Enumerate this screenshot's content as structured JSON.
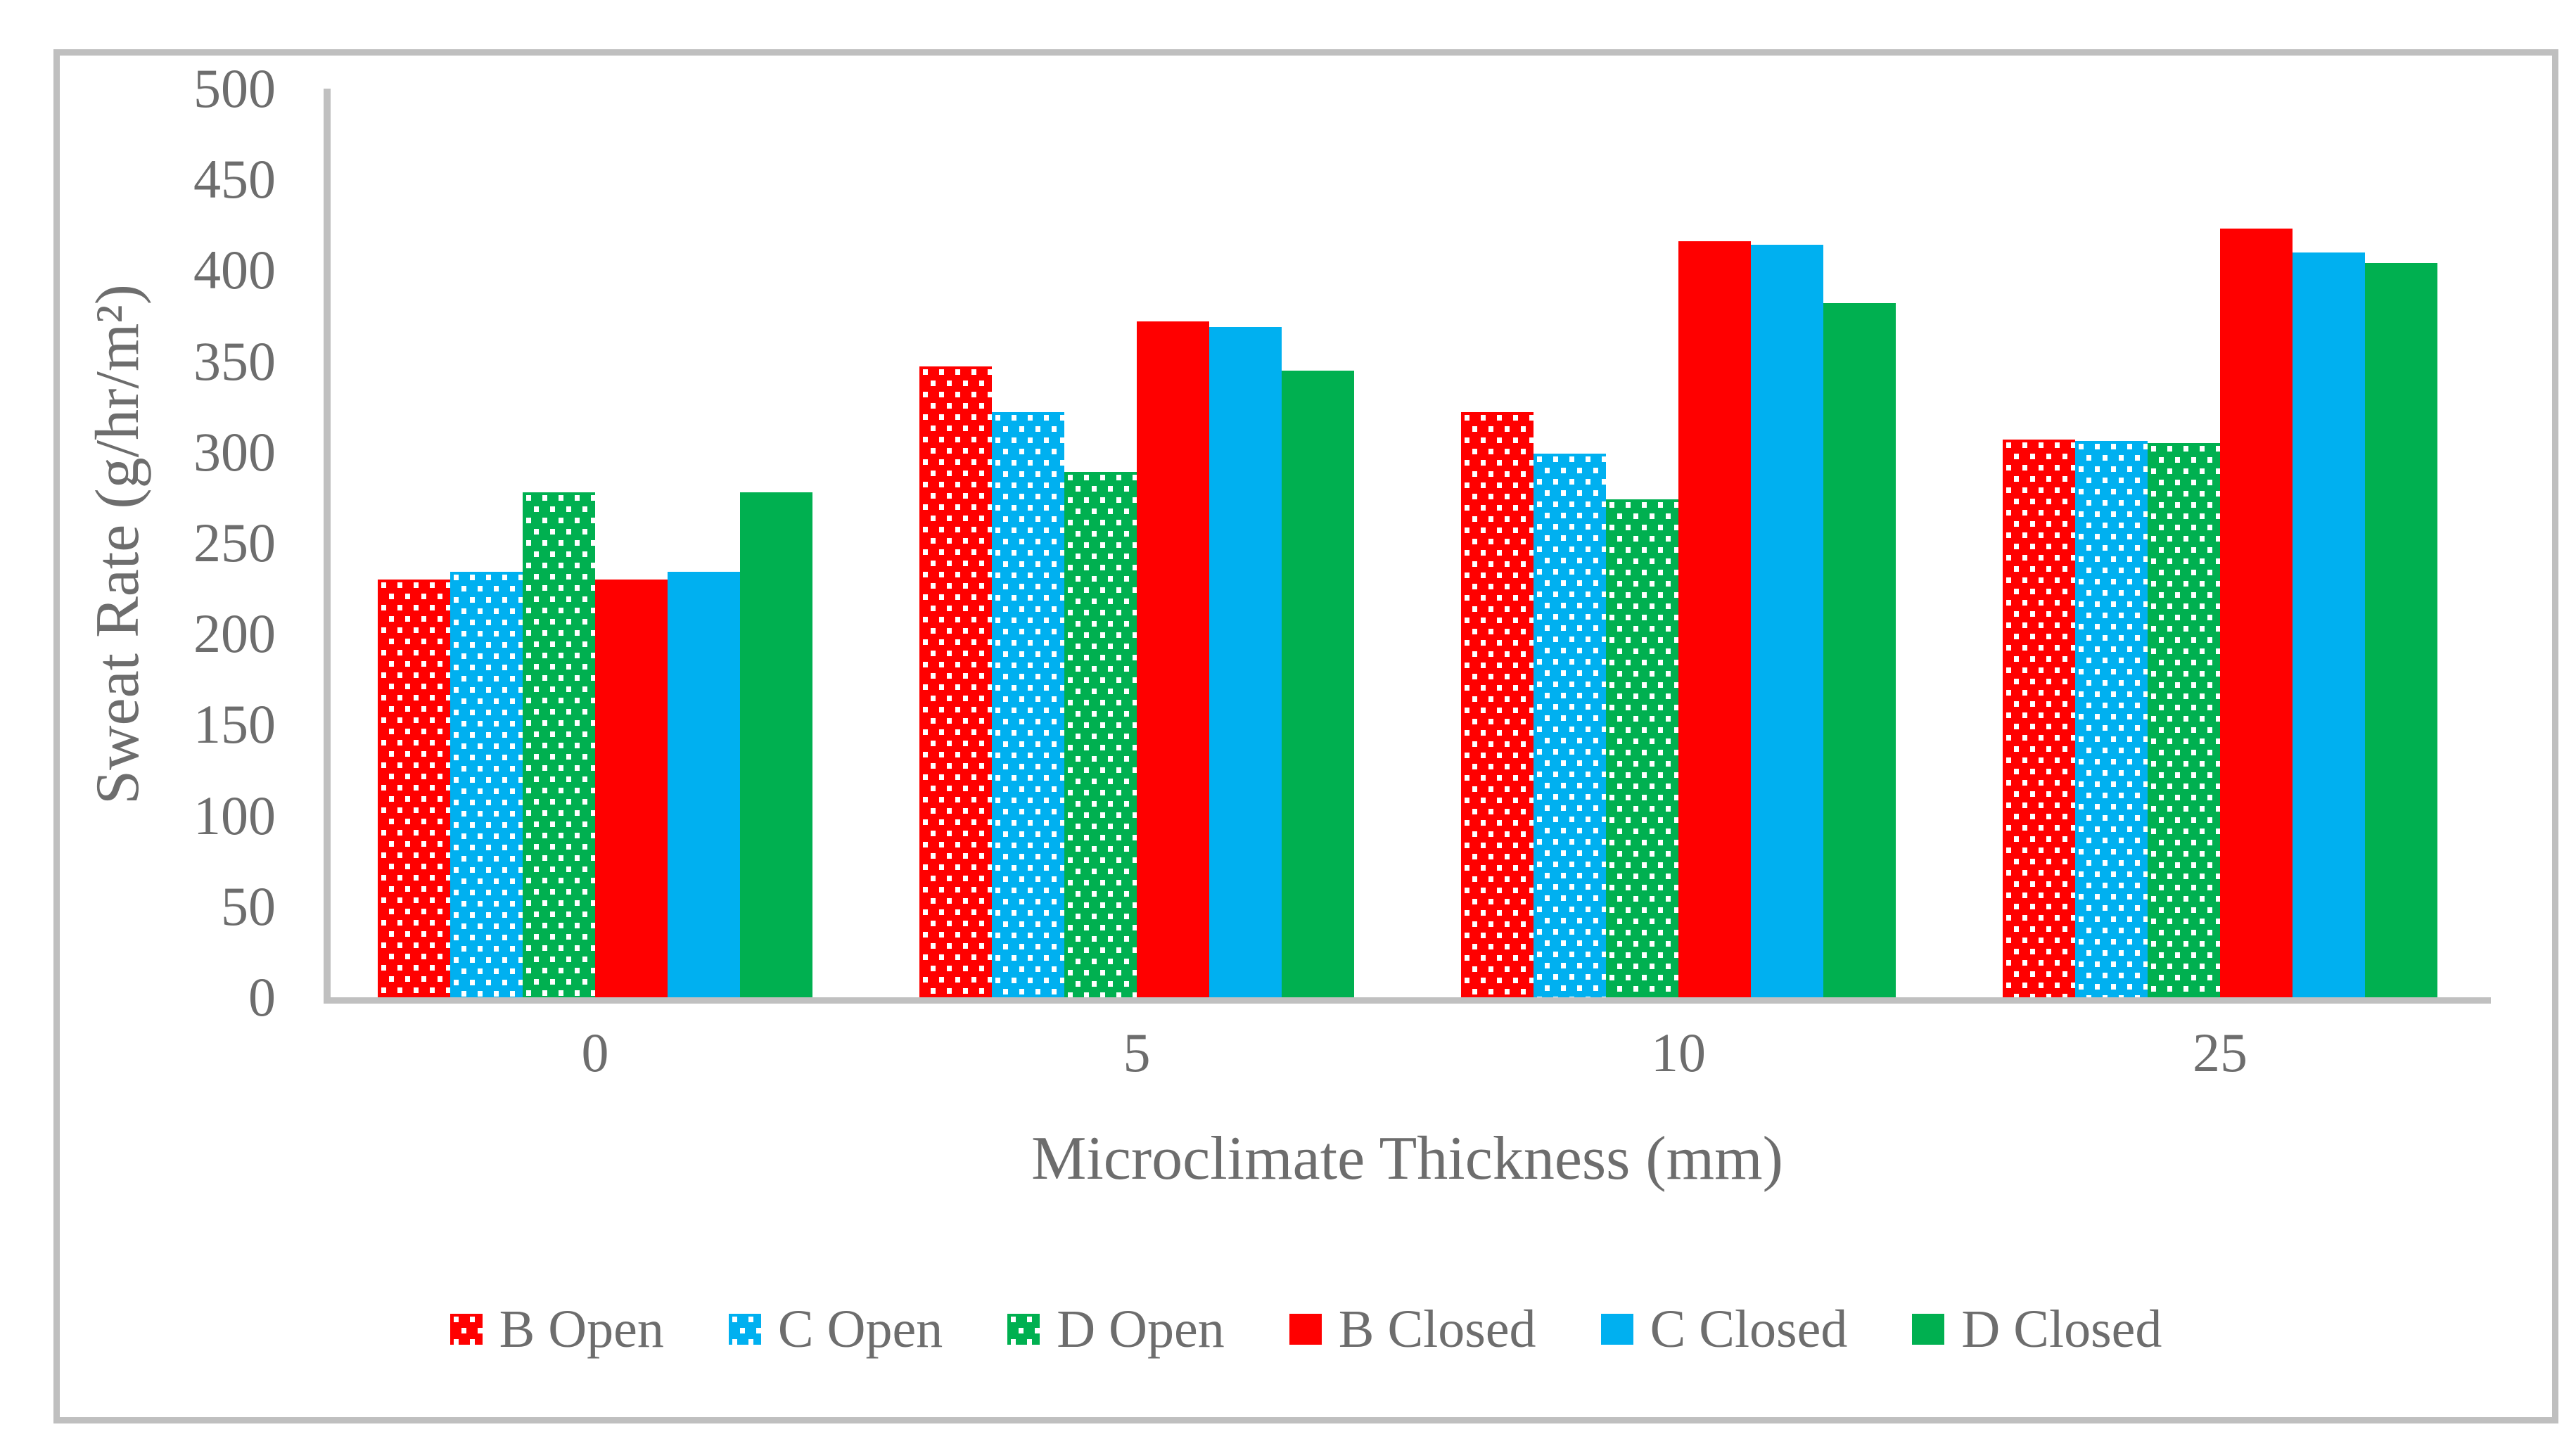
{
  "chart_data": {
    "type": "bar",
    "title": "",
    "xlabel": "Microclimate Thickness (mm)",
    "ylabel": "Sweat Rate (g/hr/m²)",
    "ylim": [
      0,
      500
    ],
    "yticks": [
      0,
      50,
      100,
      150,
      200,
      250,
      300,
      350,
      400,
      450,
      500
    ],
    "categories": [
      "0",
      "5",
      "10",
      "25"
    ],
    "series": [
      {
        "name": "B Open",
        "color": "#FF0000",
        "pattern": "dots",
        "values": [
          230,
          347,
          322,
          307
        ]
      },
      {
        "name": "C Open",
        "color": "#00B0F0",
        "pattern": "dots",
        "values": [
          234,
          322,
          299,
          306
        ]
      },
      {
        "name": "D Open",
        "color": "#00B050",
        "pattern": "dots",
        "values": [
          278,
          289,
          274,
          305
        ]
      },
      {
        "name": "B Closed",
        "color": "#FF0000",
        "pattern": "solid",
        "values": [
          230,
          372,
          416,
          423
        ]
      },
      {
        "name": "C Closed",
        "color": "#00B0F0",
        "pattern": "solid",
        "values": [
          234,
          369,
          414,
          410
        ]
      },
      {
        "name": "D Closed",
        "color": "#00B050",
        "pattern": "solid",
        "values": [
          278,
          345,
          382,
          404
        ]
      }
    ],
    "legend_position": "bottom",
    "grid": false,
    "axis_color": "#c0c0c0",
    "border_color": "#bfbfbf",
    "text_color": "#6d6d6d",
    "dot_color": "#ffffff"
  }
}
